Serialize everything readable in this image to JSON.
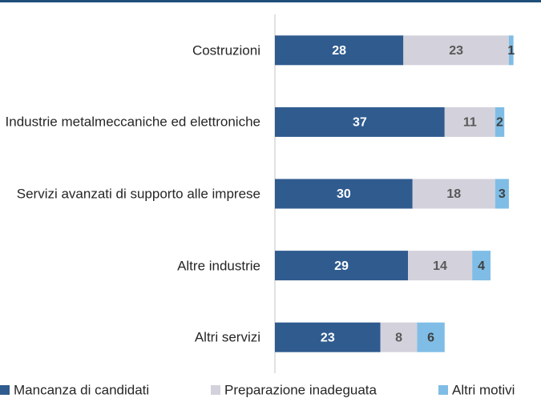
{
  "chart_data": {
    "type": "stacked-bar-horizontal",
    "categories": [
      "Costruzioni",
      "Industrie metalmeccaniche ed elettroniche",
      "Servizi avanzati di supporto alle imprese",
      "Altre industrie",
      "Altri servizi"
    ],
    "series": [
      {
        "name": "Mancanza di candidati",
        "color": "#2f5b8f",
        "label_color": "#ffffff",
        "values": [
          28,
          37,
          30,
          29,
          23
        ]
      },
      {
        "name": "Preparazione inadeguata",
        "color": "#d3d1db",
        "label_color": "#595959",
        "values": [
          23,
          11,
          18,
          14,
          8
        ]
      },
      {
        "name": "Altri motivi",
        "color": "#7fbde6",
        "label_color": "#404040",
        "values": [
          1,
          2,
          3,
          4,
          6
        ]
      }
    ],
    "xlim": [
      0,
      58
    ]
  }
}
